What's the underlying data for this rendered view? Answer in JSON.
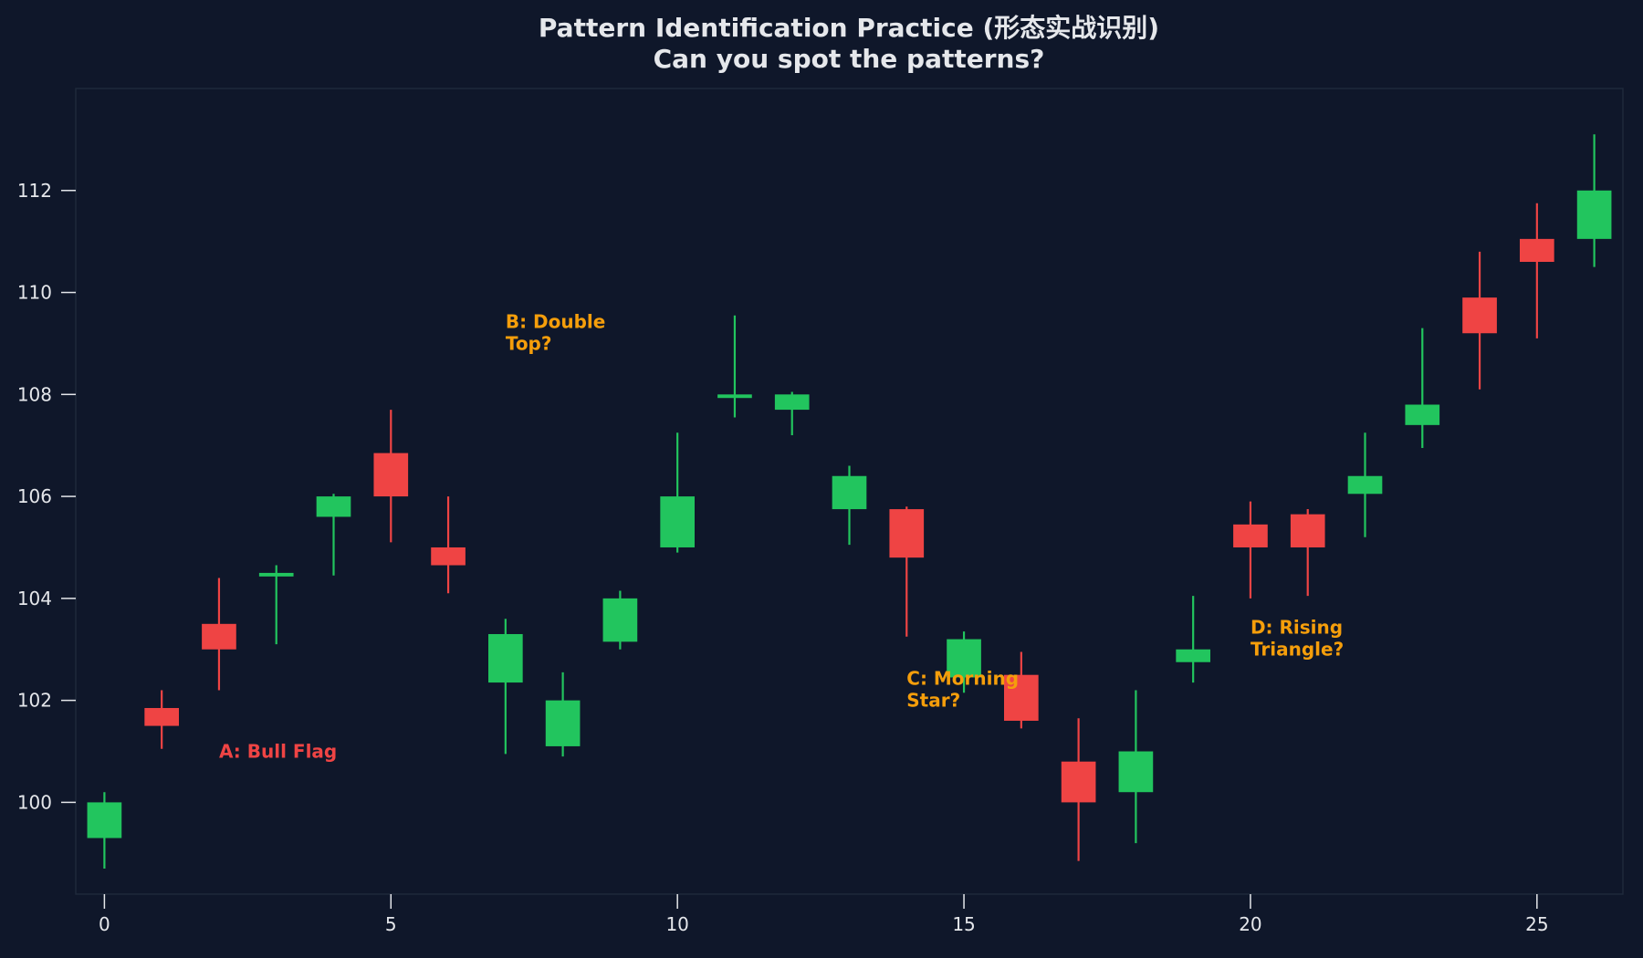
{
  "colors": {
    "background": "#0f172a",
    "plot_border": "#1e293b",
    "up": "#22c55e",
    "down": "#ef4444",
    "text": "#e5e7eb",
    "annotation_orange": "#f59e0b",
    "annotation_red": "#ef4444"
  },
  "chart_data": {
    "type": "candlestick",
    "title": "Pattern Identification Practice (形态实战识别)",
    "subtitle": "Can you spot the patterns?",
    "xlabel": "",
    "ylabel": "",
    "xlim": [
      -0.5,
      26.5
    ],
    "ylim": [
      98.2,
      114.0
    ],
    "x_ticks": [
      0,
      5,
      10,
      15,
      20,
      25
    ],
    "y_ticks": [
      100,
      102,
      104,
      106,
      108,
      110,
      112
    ],
    "grid": false,
    "candles": [
      {
        "x": 0,
        "open": 99.3,
        "high": 100.2,
        "low": 98.7,
        "close": 100.0
      },
      {
        "x": 1,
        "open": 101.85,
        "high": 102.2,
        "low": 101.05,
        "close": 101.5
      },
      {
        "x": 2,
        "open": 103.5,
        "high": 104.4,
        "low": 102.2,
        "close": 103.0
      },
      {
        "x": 3,
        "open": 104.43,
        "high": 104.65,
        "low": 103.1,
        "close": 104.5
      },
      {
        "x": 4,
        "open": 105.6,
        "high": 106.05,
        "low": 104.45,
        "close": 106.0
      },
      {
        "x": 5,
        "open": 106.85,
        "high": 107.7,
        "low": 105.1,
        "close": 106.0
      },
      {
        "x": 6,
        "open": 105.0,
        "high": 106.0,
        "low": 104.1,
        "close": 104.65
      },
      {
        "x": 7,
        "open": 102.35,
        "high": 103.6,
        "low": 100.95,
        "close": 103.3
      },
      {
        "x": 8,
        "open": 101.1,
        "high": 102.55,
        "low": 100.9,
        "close": 102.0
      },
      {
        "x": 9,
        "open": 103.15,
        "high": 104.15,
        "low": 103.0,
        "close": 104.0
      },
      {
        "x": 10,
        "open": 105.0,
        "high": 107.25,
        "low": 104.9,
        "close": 106.0
      },
      {
        "x": 11,
        "open": 107.93,
        "high": 109.55,
        "low": 107.55,
        "close": 108.0
      },
      {
        "x": 12,
        "open": 107.7,
        "high": 108.05,
        "low": 107.2,
        "close": 108.0
      },
      {
        "x": 13,
        "open": 105.75,
        "high": 106.6,
        "low": 105.05,
        "close": 106.4
      },
      {
        "x": 14,
        "open": 105.75,
        "high": 105.8,
        "low": 103.25,
        "close": 104.8
      },
      {
        "x": 15,
        "open": 102.45,
        "high": 103.35,
        "low": 102.15,
        "close": 103.2
      },
      {
        "x": 16,
        "open": 102.5,
        "high": 102.95,
        "low": 101.45,
        "close": 101.6
      },
      {
        "x": 17,
        "open": 100.8,
        "high": 101.65,
        "low": 98.85,
        "close": 100.0
      },
      {
        "x": 18,
        "open": 100.2,
        "high": 102.2,
        "low": 99.2,
        "close": 101.0
      },
      {
        "x": 19,
        "open": 102.75,
        "high": 104.05,
        "low": 102.35,
        "close": 103.0
      },
      {
        "x": 20,
        "open": 105.45,
        "high": 105.9,
        "low": 104.0,
        "close": 105.0
      },
      {
        "x": 21,
        "open": 105.65,
        "high": 105.75,
        "low": 104.05,
        "close": 105.0
      },
      {
        "x": 22,
        "open": 106.05,
        "high": 107.25,
        "low": 105.2,
        "close": 106.4
      },
      {
        "x": 23,
        "open": 107.4,
        "high": 109.3,
        "low": 106.95,
        "close": 107.8
      },
      {
        "x": 24,
        "open": 109.9,
        "high": 110.8,
        "low": 108.1,
        "close": 109.2
      },
      {
        "x": 25,
        "open": 111.05,
        "high": 111.75,
        "low": 109.1,
        "close": 110.6
      },
      {
        "x": 26,
        "open": 111.05,
        "high": 113.1,
        "low": 110.5,
        "close": 112.0
      }
    ],
    "annotations": [
      {
        "lines": [
          "A: Bull Flag"
        ],
        "x": 2.0,
        "y": 101.0,
        "color": "red"
      },
      {
        "lines": [
          "B: Double",
          "Top?"
        ],
        "x": 7.0,
        "y": 109.0,
        "color": "orange"
      },
      {
        "lines": [
          "C: Morning",
          "Star?"
        ],
        "x": 14.0,
        "y": 102.0,
        "color": "orange"
      },
      {
        "lines": [
          "D: Rising",
          "Triangle?"
        ],
        "x": 20.0,
        "y": 103.0,
        "color": "orange"
      }
    ]
  }
}
